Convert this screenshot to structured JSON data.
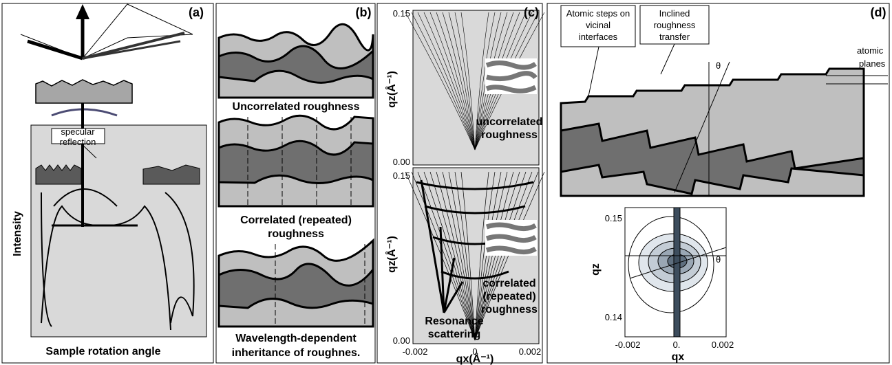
{
  "panel_a": {
    "label": "(a)",
    "callout": [
      "specular",
      "reflection"
    ],
    "y_axis_label": "Intensity",
    "x_axis_label": "Sample rotation angle"
  },
  "panel_b": {
    "label": "(b)",
    "captions": [
      [
        "Uncorrelated roughness"
      ],
      [
        "Correlated (repeated)",
        "roughness"
      ],
      [
        "Wavelength-dependent",
        "inheritance of roughnes."
      ]
    ]
  },
  "panel_c": {
    "label": "(c)",
    "top_yticks": [
      "0.15",
      "0.00"
    ],
    "bottom_yticks": [
      "0.15",
      "0.00"
    ],
    "xticks": [
      "-0.002",
      "0",
      "0.002"
    ],
    "top_y_axis_label": "qz(Å⁻¹)",
    "bottom_y_axis_label": "qz(Å⁻¹)",
    "x_axis_label": "qx(Å⁻¹)",
    "top_inset_caption": [
      "uncorrelated",
      "roughness"
    ],
    "bottom_inset_caption": [
      "correlated",
      "(repeated)",
      "roughness"
    ],
    "annotation": [
      "Resonance",
      "scattering"
    ]
  },
  "panel_d": {
    "label": "(d)",
    "callout_left": [
      "Atomic steps on",
      "vicinal",
      "interfaces"
    ],
    "callout_right": [
      "Inclined",
      "roughness",
      "transfer"
    ],
    "theta_top": "θ",
    "planes_label": [
      "atomic",
      "planes"
    ],
    "yticks": [
      "0.15",
      "0.14"
    ],
    "xticks": [
      "-0.002",
      "0.",
      "0.002"
    ],
    "y_axis_label": "qz",
    "x_axis_label": "qx",
    "theta_bottom": "θ"
  }
}
